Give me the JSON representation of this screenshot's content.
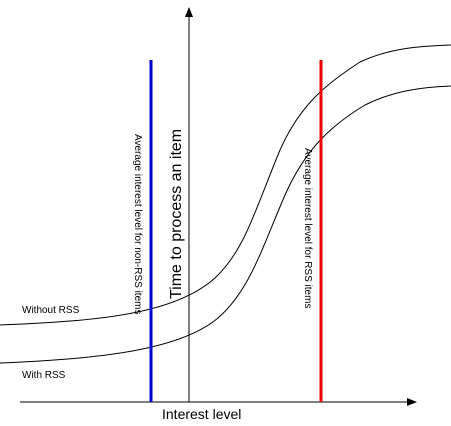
{
  "labels": {
    "x_axis": "Interest level",
    "y_axis": "Time to process an item",
    "curve_without_rss": "Without RSS",
    "curve_with_rss": "With RSS",
    "non_rss_marker": "Average interest level for non-RSS items",
    "rss_marker": "Average interest level for RSS items"
  },
  "colors": {
    "axis": "#000000",
    "curves": "#000000",
    "non_rss_marker": "#0000cc",
    "rss_marker": "#ee0000",
    "background": "#ffffff"
  }
}
